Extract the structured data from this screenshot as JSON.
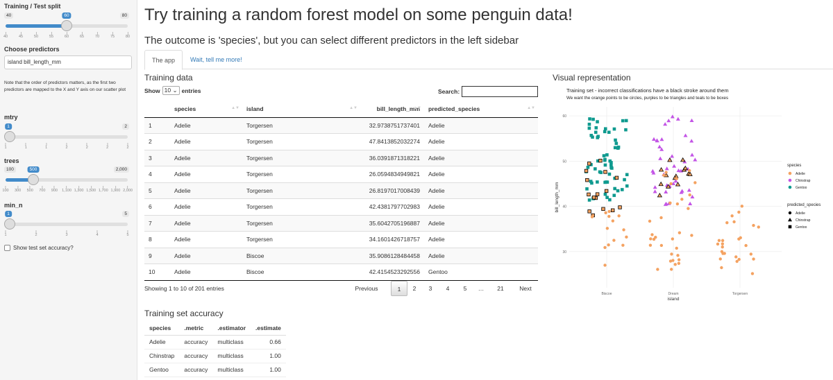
{
  "sidebar": {
    "split": {
      "label": "Training / Test split",
      "min": 40,
      "max": 80,
      "value": 60,
      "ticks": [
        "40",
        "45",
        "50",
        "55",
        "60",
        "65",
        "70",
        "75",
        "80"
      ]
    },
    "predictors": {
      "label": "Choose predictors",
      "value": "island  bill_length_mm"
    },
    "note": "Note that the order of predictors matters, as the first two predictors are mapped to the X and Y axis on our scatter plot",
    "mtry": {
      "label": "mtry",
      "min": "1",
      "max": "2",
      "value": "1",
      "ticks": [
        "1",
        "1",
        "1",
        "2",
        "2",
        "2",
        "2"
      ]
    },
    "trees": {
      "label": "trees",
      "min": "100",
      "max": "2,000",
      "value": "500",
      "ticks": [
        "100",
        "300",
        "500",
        "700",
        "900",
        "1,100",
        "1,300",
        "1,500",
        "1,700",
        "1,900",
        "2,000"
      ]
    },
    "min_n": {
      "label": "min_n",
      "min": "1",
      "max": "5",
      "value": "1",
      "ticks": [
        "1",
        "2",
        "3",
        "4",
        "5"
      ]
    },
    "test_acc_label": "Show test set accuracy?"
  },
  "header": {
    "title": "Try training a random forest model on some penguin data!",
    "subtitle": "The outcome is 'species', but you can select different predictors in the left sidebar"
  },
  "tabs": [
    "The app",
    "Wait, tell me more!"
  ],
  "training": {
    "title": "Training data",
    "show": "Show",
    "entries_value": "10",
    "entries": "entries",
    "search": "Search:",
    "columns": [
      "",
      "species",
      "island",
      "bill_length_mm",
      "predicted_species"
    ],
    "rows": [
      [
        "1",
        "Adelie",
        "Torgersen",
        "32.9738751737401",
        "Adelie"
      ],
      [
        "2",
        "Adelie",
        "Torgersen",
        "47.8413852032274",
        "Adelie"
      ],
      [
        "3",
        "Adelie",
        "Torgersen",
        "36.0391871318221",
        "Adelie"
      ],
      [
        "4",
        "Adelie",
        "Torgersen",
        "26.0594834949821",
        "Adelie"
      ],
      [
        "5",
        "Adelie",
        "Torgersen",
        "26.8197017008439",
        "Adelie"
      ],
      [
        "6",
        "Adelie",
        "Torgersen",
        "42.4381797702983",
        "Adelie"
      ],
      [
        "7",
        "Adelie",
        "Torgersen",
        "35.6042705196887",
        "Adelie"
      ],
      [
        "8",
        "Adelie",
        "Torgersen",
        "34.1601426718757",
        "Adelie"
      ],
      [
        "9",
        "Adelie",
        "Biscoe",
        "35.9086128484458",
        "Adelie"
      ],
      [
        "10",
        "Adelie",
        "Biscoe",
        "42.4154523292556",
        "Gentoo"
      ]
    ],
    "info": "Showing 1 to 10 of 201 entries",
    "pager": [
      "Previous",
      "1",
      "2",
      "3",
      "4",
      "5",
      "…",
      "21",
      "Next"
    ]
  },
  "accuracy": {
    "title": "Training set accuracy",
    "columns": [
      "species",
      ".metric",
      ".estimator",
      ".estimate"
    ],
    "rows": [
      [
        "Adelie",
        "accuracy",
        "multiclass",
        "0.66"
      ],
      [
        "Chinstrap",
        "accuracy",
        "multiclass",
        "1.00"
      ],
      [
        "Gentoo",
        "accuracy",
        "multiclass",
        "1.00"
      ]
    ]
  },
  "visual": {
    "title": "Visual representation",
    "plot_title": "Training set - incorrect classifications have a black stroke around them",
    "plot_subtitle": "We want the orange points to be circles, purples to be triangles and teals to be boxes",
    "x_label": "island",
    "y_label": "bill_length_mm",
    "x_ticks": [
      "Biscoe",
      "Dream",
      "Torgersen"
    ],
    "y_ticks": [
      "30",
      "40",
      "50",
      "60"
    ],
    "legend_species_title": "species",
    "legend_species": [
      "Adelie",
      "Chinstrap",
      "Gentoo"
    ],
    "legend_pred_title": "predicted_species",
    "legend_pred": [
      "Adelie",
      "Chinstrap",
      "Gentoo"
    ],
    "colors": {
      "Adelie": "#f4a261",
      "Chinstrap": "#c355e6",
      "Gentoo": "#0f9a8f",
      "accent": "#428bca"
    }
  }
}
